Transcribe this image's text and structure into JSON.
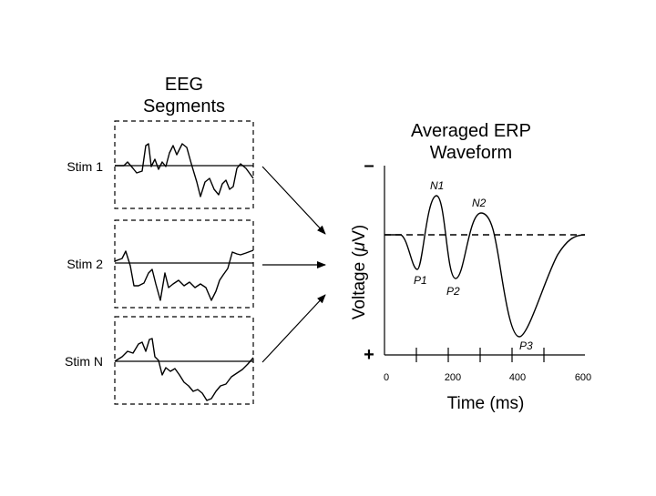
{
  "eeg": {
    "title_line1": "EEG",
    "title_line2": "Segments",
    "segments": [
      {
        "label": "Stim 1"
      },
      {
        "label": "Stim 2"
      },
      {
        "label": "Stim N"
      }
    ]
  },
  "erp": {
    "title_line1": "Averaged ERP",
    "title_line2": "Waveform",
    "y_label_pre": "Voltage (",
    "y_label_mu": "μ",
    "y_label_post": "V)",
    "minus_sign": "–",
    "plus_sign": "+",
    "x_label": "Time (ms)",
    "x_ticks": [
      "0",
      "200",
      "400",
      "600"
    ],
    "peaks": [
      "N1",
      "N2",
      "P1",
      "P2",
      "P3"
    ]
  }
}
